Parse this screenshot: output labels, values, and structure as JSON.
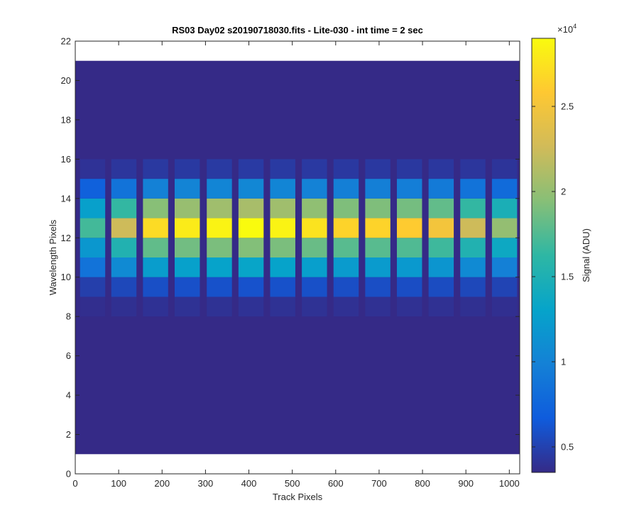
{
  "chart_data": {
    "type": "heatmap",
    "title": "RS03 Day02  s20190718030.fits - Lite-030 - int time = 2 sec",
    "xlabel": "Track Pixels",
    "ylabel": "Wavelength Pixels",
    "xlim": [
      0,
      1024
    ],
    "ylim": [
      0,
      22
    ],
    "xticks": [
      "0",
      "100",
      "200",
      "300",
      "400",
      "500",
      "600",
      "700",
      "800",
      "900",
      "1000"
    ],
    "yticks": [
      "0",
      "2",
      "4",
      "6",
      "8",
      "10",
      "12",
      "14",
      "16",
      "18",
      "20",
      "22"
    ],
    "grid": false,
    "data_extent": {
      "x": [
        0,
        1024
      ],
      "y": [
        1,
        21
      ]
    },
    "background_value": 3500,
    "colorbar": {
      "label": "Signal (ADU)",
      "exponent_label": "×10",
      "exponent": "4",
      "range": [
        3500,
        29000
      ],
      "ticks": [
        "0.5",
        "1",
        "1.5",
        "2",
        "2.5"
      ],
      "tick_values": [
        5000,
        10000,
        15000,
        20000,
        25000
      ],
      "colormap": "parula",
      "colormap_stops": [
        "#352a87",
        "#0f5cdd",
        "#1481d6",
        "#06a4ca",
        "#2eb7a4",
        "#87bf77",
        "#d1bb59",
        "#fec832",
        "#f9fb0e"
      ]
    },
    "row_profile": {
      "rows": [
        8,
        9,
        10,
        11,
        12,
        13,
        14,
        15
      ],
      "fraction_of_peak": [
        0.02,
        0.1,
        0.38,
        0.62,
        1.0,
        0.68,
        0.27,
        0.04
      ]
    },
    "tracks": [
      {
        "center": 40,
        "peak": 17000
      },
      {
        "center": 112,
        "peak": 22500
      },
      {
        "center": 185,
        "peak": 27000
      },
      {
        "center": 258,
        "peak": 28000
      },
      {
        "center": 332,
        "peak": 28500
      },
      {
        "center": 405,
        "peak": 29000
      },
      {
        "center": 478,
        "peak": 28500
      },
      {
        "center": 551,
        "peak": 27500
      },
      {
        "center": 624,
        "peak": 26500
      },
      {
        "center": 697,
        "peak": 26500
      },
      {
        "center": 770,
        "peak": 26000
      },
      {
        "center": 843,
        "peak": 25000
      },
      {
        "center": 916,
        "peak": 22500
      },
      {
        "center": 989,
        "peak": 20000
      }
    ],
    "track_width": 58
  }
}
